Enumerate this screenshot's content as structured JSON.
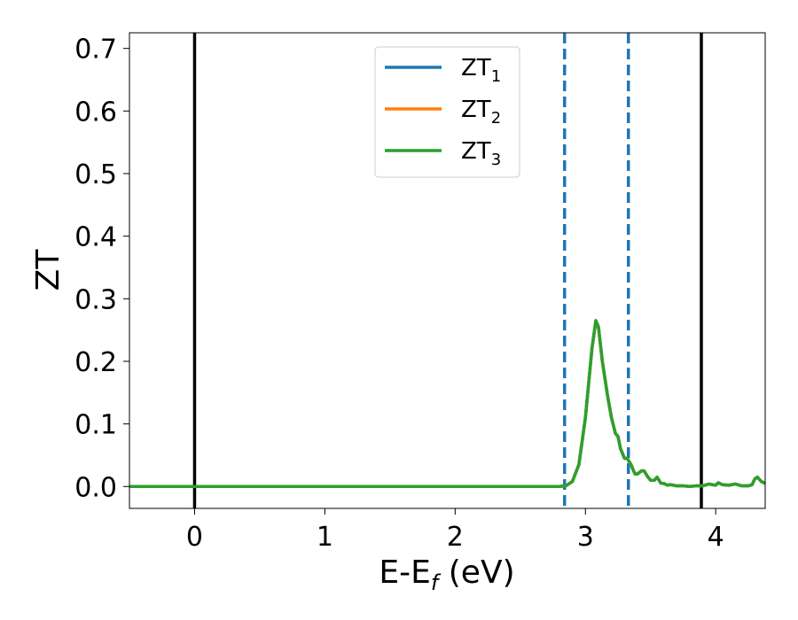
{
  "chart_data": {
    "type": "line",
    "xlabel": "E-E",
    "xlabel_sub": "f",
    "xlabel_unit": " (eV)",
    "ylabel": "ZT",
    "xlim": [
      -0.5,
      4.38
    ],
    "ylim": [
      -0.035,
      0.725
    ],
    "xticks": [
      0,
      1,
      2,
      3,
      4
    ],
    "xtick_labels": [
      "0",
      "1",
      "2",
      "3",
      "4"
    ],
    "yticks": [
      0.0,
      0.1,
      0.2,
      0.3,
      0.4,
      0.5,
      0.6,
      0.7
    ],
    "ytick_labels": [
      "0.0",
      "0.1",
      "0.2",
      "0.3",
      "0.4",
      "0.5",
      "0.6",
      "0.7"
    ],
    "grid": false,
    "legend_position": "top-center",
    "series": [
      {
        "name": "ZT",
        "name_sub": "1",
        "color": "#1f77b4",
        "x": [
          -0.5,
          0.0,
          1.0,
          2.0,
          2.8,
          2.85,
          2.9,
          2.95,
          3.0,
          3.05,
          3.08,
          3.1,
          3.13,
          3.17,
          3.2,
          3.23,
          3.25,
          3.27,
          3.3,
          3.32,
          3.35,
          3.38,
          3.4,
          3.43,
          3.45,
          3.48,
          3.5,
          3.53,
          3.55,
          3.58,
          3.6,
          3.63,
          3.65,
          3.7,
          3.75,
          3.8,
          3.85,
          3.9,
          3.95,
          3.97,
          4.0,
          4.02,
          4.05,
          4.1,
          4.15,
          4.2,
          4.25,
          4.28,
          4.3,
          4.32,
          4.35,
          4.38
        ],
        "y": [
          0.0,
          0.0,
          0.0,
          0.0,
          0.0,
          0.001,
          0.008,
          0.035,
          0.11,
          0.22,
          0.265,
          0.255,
          0.2,
          0.145,
          0.11,
          0.085,
          0.08,
          0.06,
          0.045,
          0.045,
          0.035,
          0.02,
          0.02,
          0.025,
          0.025,
          0.015,
          0.01,
          0.01,
          0.015,
          0.005,
          0.005,
          0.002,
          0.003,
          0.001,
          0.001,
          0.0,
          0.001,
          0.001,
          0.004,
          0.003,
          0.002,
          0.006,
          0.003,
          0.002,
          0.004,
          0.001,
          0.001,
          0.003,
          0.012,
          0.015,
          0.008,
          0.005
        ]
      },
      {
        "name": "ZT",
        "name_sub": "2",
        "color": "#ff7f0e",
        "x": [
          -0.5,
          0.0,
          1.0,
          2.0,
          2.8,
          2.85,
          2.9,
          2.95,
          3.0,
          3.05,
          3.08,
          3.1,
          3.13,
          3.17,
          3.2,
          3.23,
          3.25,
          3.27,
          3.3,
          3.32,
          3.35,
          3.38,
          3.4,
          3.43,
          3.45,
          3.48,
          3.5,
          3.53,
          3.55,
          3.58,
          3.6,
          3.63,
          3.65,
          3.7,
          3.75,
          3.8,
          3.85,
          3.9,
          3.95,
          3.97,
          4.0,
          4.02,
          4.05,
          4.1,
          4.15,
          4.2,
          4.25,
          4.28,
          4.3,
          4.32,
          4.35,
          4.38
        ],
        "y": [
          0.0,
          0.0,
          0.0,
          0.0,
          0.0,
          0.001,
          0.008,
          0.035,
          0.11,
          0.22,
          0.265,
          0.255,
          0.2,
          0.145,
          0.11,
          0.085,
          0.08,
          0.06,
          0.045,
          0.045,
          0.035,
          0.02,
          0.02,
          0.025,
          0.025,
          0.015,
          0.01,
          0.01,
          0.015,
          0.005,
          0.005,
          0.002,
          0.003,
          0.001,
          0.001,
          0.0,
          0.001,
          0.001,
          0.004,
          0.003,
          0.002,
          0.006,
          0.003,
          0.002,
          0.004,
          0.001,
          0.001,
          0.003,
          0.012,
          0.015,
          0.008,
          0.005
        ]
      },
      {
        "name": "ZT",
        "name_sub": "3",
        "color": "#2ca02c",
        "x": [
          -0.5,
          0.0,
          1.0,
          2.0,
          2.8,
          2.85,
          2.9,
          2.95,
          3.0,
          3.05,
          3.08,
          3.1,
          3.13,
          3.17,
          3.2,
          3.23,
          3.25,
          3.27,
          3.3,
          3.32,
          3.35,
          3.38,
          3.4,
          3.43,
          3.45,
          3.48,
          3.5,
          3.53,
          3.55,
          3.58,
          3.6,
          3.63,
          3.65,
          3.7,
          3.75,
          3.8,
          3.85,
          3.9,
          3.95,
          3.97,
          4.0,
          4.02,
          4.05,
          4.1,
          4.15,
          4.2,
          4.25,
          4.28,
          4.3,
          4.32,
          4.35,
          4.38
        ],
        "y": [
          0.0,
          0.0,
          0.0,
          0.0,
          0.0,
          0.001,
          0.008,
          0.035,
          0.11,
          0.22,
          0.265,
          0.255,
          0.2,
          0.145,
          0.11,
          0.085,
          0.08,
          0.06,
          0.045,
          0.045,
          0.035,
          0.02,
          0.02,
          0.025,
          0.025,
          0.015,
          0.01,
          0.01,
          0.015,
          0.005,
          0.005,
          0.002,
          0.003,
          0.001,
          0.001,
          0.0,
          0.001,
          0.001,
          0.004,
          0.003,
          0.002,
          0.006,
          0.003,
          0.002,
          0.004,
          0.001,
          0.001,
          0.003,
          0.012,
          0.015,
          0.008,
          0.005
        ]
      }
    ],
    "vertical_lines": [
      {
        "x": 0.0,
        "style": "solid",
        "color": "#000000"
      },
      {
        "x": 3.89,
        "style": "solid",
        "color": "#000000"
      },
      {
        "x": 2.84,
        "style": "dashed",
        "color": "#1f77b4"
      },
      {
        "x": 3.33,
        "style": "dashed",
        "color": "#1f77b4"
      }
    ]
  }
}
